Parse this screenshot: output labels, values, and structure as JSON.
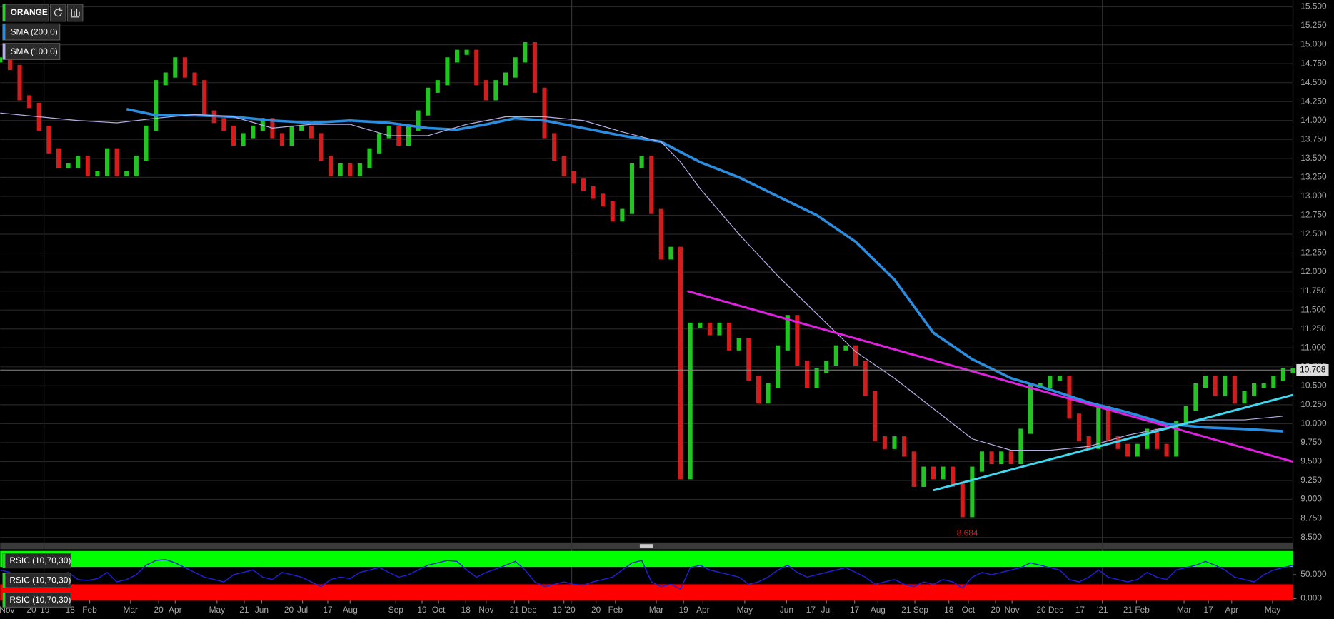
{
  "chart_data": [
    {
      "type": "candlestick",
      "title": "ORANGE",
      "values": [
        14.8,
        14.7,
        14.3,
        14.2,
        13.9,
        13.6,
        13.4,
        13.4,
        13.5,
        13.3,
        13.3,
        13.6,
        13.3,
        13.3,
        13.5,
        13.9,
        14.5,
        14.6,
        14.8,
        14.6,
        14.5,
        14.1,
        14.0,
        13.9,
        13.7,
        13.8,
        13.9,
        14.0,
        13.8,
        13.7,
        13.9,
        13.9,
        13.8,
        13.5,
        13.3,
        13.4,
        13.3,
        13.4,
        13.6,
        13.8,
        13.9,
        13.7,
        13.9,
        14.1,
        14.4,
        14.5,
        14.8,
        14.9,
        14.9,
        14.5,
        14.3,
        14.5,
        14.6,
        14.8,
        15.0,
        14.4,
        13.8,
        13.5,
        13.3,
        13.2,
        13.1,
        13.0,
        12.9,
        12.7,
        12.8,
        13.4,
        13.5,
        12.8,
        12.2,
        12.3,
        9.3,
        11.3,
        11.3,
        11.2,
        11.3,
        11.0,
        11.1,
        10.6,
        10.3,
        10.5,
        11.0,
        11.4,
        10.8,
        10.5,
        10.7,
        10.8,
        11.0,
        11.0,
        10.8,
        10.4,
        9.8,
        9.7,
        9.8,
        9.6,
        9.2,
        9.4,
        9.3,
        9.4,
        9.2,
        8.8,
        9.4,
        9.6,
        9.5,
        9.6,
        9.5,
        9.9,
        10.5,
        10.5,
        10.6,
        10.6,
        10.1,
        9.8,
        9.7,
        10.2,
        9.8,
        9.7,
        9.6,
        9.7,
        9.9,
        9.7,
        9.6,
        10.0,
        10.2,
        10.5,
        10.6,
        10.4,
        10.6,
        10.3,
        10.4,
        10.5,
        10.5,
        10.6,
        10.7,
        10.7
      ],
      "up_color": "#22c422",
      "down_color": "#d41c1c",
      "xlim": [
        0,
        133
      ],
      "ylim": [
        8.5,
        15.5
      ],
      "yticks": [
        {
          "value": 8.5,
          "label": "8.500"
        },
        {
          "value": 8.75,
          "label": "8.750"
        },
        {
          "value": 9,
          "label": "9.000"
        },
        {
          "value": 9.25,
          "label": "9.250"
        },
        {
          "value": 9.5,
          "label": "9.500"
        },
        {
          "value": 9.75,
          "label": "9.750"
        },
        {
          "value": 10,
          "label": "10.000"
        },
        {
          "value": 10.25,
          "label": "10.250"
        },
        {
          "value": 10.5,
          "label": "10.500"
        },
        {
          "value": 10.75,
          "label": "10.750"
        },
        {
          "value": 11,
          "label": "11.000"
        },
        {
          "value": 11.25,
          "label": "11.250"
        },
        {
          "value": 11.5,
          "label": "11.500"
        },
        {
          "value": 11.75,
          "label": "11.750"
        },
        {
          "value": 12,
          "label": "12.000"
        },
        {
          "value": 12.25,
          "label": "12.250"
        },
        {
          "value": 12.5,
          "label": "12.500"
        },
        {
          "value": 12.75,
          "label": "12.750"
        },
        {
          "value": 13,
          "label": "13.000"
        },
        {
          "value": 13.25,
          "label": "13.250"
        },
        {
          "value": 13.5,
          "label": "13.500"
        },
        {
          "value": 13.75,
          "label": "13.750"
        },
        {
          "value": 14,
          "label": "14.000"
        },
        {
          "value": 14.25,
          "label": "14.250"
        },
        {
          "value": 14.5,
          "label": "14.500"
        },
        {
          "value": 14.75,
          "label": "14.750"
        },
        {
          "value": 15,
          "label": "15.000"
        },
        {
          "value": 15.25,
          "label": "15.250"
        },
        {
          "value": 15.5,
          "label": "15.500"
        }
      ],
      "grid": true,
      "year_lines": [
        4.5,
        58.8,
        113.4
      ],
      "last_price": 10.708,
      "low": {
        "x": 99.5,
        "value": 8.684
      },
      "series": [
        {
          "name": "SMA (200,0)",
          "color": "#2b8de0",
          "width": 3,
          "x": [
            13,
            16,
            20,
            24,
            28,
            32,
            36,
            40,
            44,
            47,
            50,
            53,
            56,
            60,
            64,
            68,
            72,
            76,
            80,
            84,
            88,
            92,
            96,
            100,
            104,
            108,
            112,
            116,
            120,
            124,
            128,
            132
          ],
          "values": [
            14.15,
            14.07,
            14.07,
            14.05,
            14.0,
            13.97,
            14.0,
            13.97,
            13.9,
            13.88,
            13.95,
            14.03,
            14.0,
            13.9,
            13.8,
            13.72,
            13.45,
            13.25,
            13.0,
            12.75,
            12.4,
            11.9,
            11.2,
            10.85,
            10.6,
            10.45,
            10.28,
            10.15,
            10.0,
            9.95,
            9.93,
            9.9
          ]
        },
        {
          "name": "SMA (100,0)",
          "color": "#b4aee6",
          "width": 1,
          "x": [
            0,
            4,
            8,
            12,
            16,
            20,
            24,
            28,
            32,
            36,
            40,
            44,
            48,
            52,
            56,
            60,
            64,
            68,
            70,
            72,
            76,
            80,
            84,
            88,
            92,
            96,
            100,
            104,
            108,
            112,
            116,
            120,
            124,
            128,
            132
          ],
          "values": [
            14.1,
            14.05,
            14.0,
            13.97,
            14.03,
            14.08,
            14.05,
            13.9,
            13.95,
            13.95,
            13.8,
            13.8,
            13.95,
            14.05,
            14.05,
            14.0,
            13.85,
            13.72,
            13.45,
            13.1,
            12.5,
            11.95,
            11.45,
            10.95,
            10.6,
            10.2,
            9.8,
            9.65,
            9.65,
            9.7,
            9.85,
            9.95,
            10.05,
            10.05,
            10.1
          ]
        }
      ],
      "trendlines": [
        {
          "color": "#e020e0",
          "x": [
            70.7,
            133
          ],
          "values": [
            11.75,
            9.5
          ]
        },
        {
          "color": "#40d8f0",
          "x": [
            96,
            133
          ],
          "values": [
            9.12,
            10.38
          ]
        }
      ]
    },
    {
      "type": "line",
      "indicator_labels": [
        "RSIC (10,70,30)",
        "RSIC (10,70,30)",
        "RSIC (10,70,30)"
      ],
      "series": [
        {
          "color": "#2020d8",
          "values": [
            60,
            55,
            45,
            40,
            35,
            30,
            45,
            55,
            40,
            38,
            42,
            55,
            35,
            40,
            50,
            70,
            80,
            82,
            75,
            65,
            55,
            45,
            40,
            35,
            50,
            55,
            60,
            45,
            40,
            55,
            50,
            45,
            35,
            25,
            40,
            45,
            42,
            55,
            60,
            65,
            55,
            45,
            50,
            60,
            70,
            75,
            80,
            78,
            60,
            45,
            55,
            62,
            70,
            78,
            60,
            35,
            25,
            30,
            35,
            30,
            28,
            35,
            40,
            45,
            60,
            75,
            80,
            35,
            25,
            30,
            20,
            65,
            70,
            60,
            55,
            50,
            45,
            30,
            35,
            45,
            60,
            70,
            55,
            45,
            50,
            55,
            60,
            65,
            55,
            45,
            30,
            35,
            40,
            30,
            25,
            35,
            30,
            40,
            35,
            22,
            45,
            55,
            50,
            55,
            60,
            65,
            75,
            70,
            65,
            60,
            40,
            35,
            45,
            60,
            45,
            40,
            35,
            40,
            55,
            45,
            40,
            60,
            65,
            70,
            78,
            70,
            60,
            45,
            40,
            35,
            50,
            60,
            65,
            70
          ]
        }
      ],
      "bands": [
        {
          "from": 70,
          "to": 100,
          "color": "#00ff00"
        },
        {
          "from": 0,
          "to": 30,
          "color": "#ff0000"
        }
      ],
      "xlim": [
        0,
        133
      ],
      "ylim": [
        0,
        100
      ],
      "yticks": [
        {
          "value": 50,
          "label": "50.000"
        },
        {
          "value": 0,
          "label": "0.000"
        }
      ],
      "xticks": [
        {
          "value": 0.7,
          "label": "Nov"
        },
        {
          "value": 3.9,
          "label": "20 '19"
        },
        {
          "value": 7.2,
          "label": "18"
        },
        {
          "value": 9.2,
          "label": "Feb"
        },
        {
          "value": 13.4,
          "label": "Mar"
        },
        {
          "value": 16.3,
          "label": "20"
        },
        {
          "value": 18.0,
          "label": "Apr"
        },
        {
          "value": 22.3,
          "label": "May"
        },
        {
          "value": 25.1,
          "label": "21"
        },
        {
          "value": 26.9,
          "label": "Jun"
        },
        {
          "value": 29.7,
          "label": "20"
        },
        {
          "value": 31.1,
          "label": "Jul"
        },
        {
          "value": 33.7,
          "label": "17"
        },
        {
          "value": 36.0,
          "label": "Aug"
        },
        {
          "value": 40.7,
          "label": "Sep"
        },
        {
          "value": 43.4,
          "label": "19"
        },
        {
          "value": 45.1,
          "label": "Oct"
        },
        {
          "value": 47.9,
          "label": "18"
        },
        {
          "value": 50.0,
          "label": "Nov"
        },
        {
          "value": 52.9,
          "label": "21"
        },
        {
          "value": 54.4,
          "label": "Dec"
        },
        {
          "value": 58.0,
          "label": "19 '20"
        },
        {
          "value": 61.3,
          "label": "20"
        },
        {
          "value": 63.3,
          "label": "Feb"
        },
        {
          "value": 67.5,
          "label": "Mar"
        },
        {
          "value": 70.3,
          "label": "19"
        },
        {
          "value": 72.3,
          "label": "Apr"
        },
        {
          "value": 76.6,
          "label": "May"
        },
        {
          "value": 80.9,
          "label": "Jun"
        },
        {
          "value": 83.4,
          "label": "17"
        },
        {
          "value": 85.0,
          "label": "Jul"
        },
        {
          "value": 87.9,
          "label": "17"
        },
        {
          "value": 90.3,
          "label": "Aug"
        },
        {
          "value": 94.1,
          "label": "21 Sep"
        },
        {
          "value": 97.6,
          "label": "18"
        },
        {
          "value": 99.6,
          "label": "Oct"
        },
        {
          "value": 102.4,
          "label": "20"
        },
        {
          "value": 104.1,
          "label": "Nov"
        },
        {
          "value": 108.0,
          "label": "20 Dec"
        },
        {
          "value": 111.1,
          "label": "17"
        },
        {
          "value": 113.4,
          "label": "'21"
        },
        {
          "value": 116.9,
          "label": "21 Feb"
        },
        {
          "value": 121.8,
          "label": "Mar"
        },
        {
          "value": 124.3,
          "label": "17"
        },
        {
          "value": 126.7,
          "label": "Apr"
        },
        {
          "value": 130.9,
          "label": "May"
        }
      ]
    }
  ]
}
